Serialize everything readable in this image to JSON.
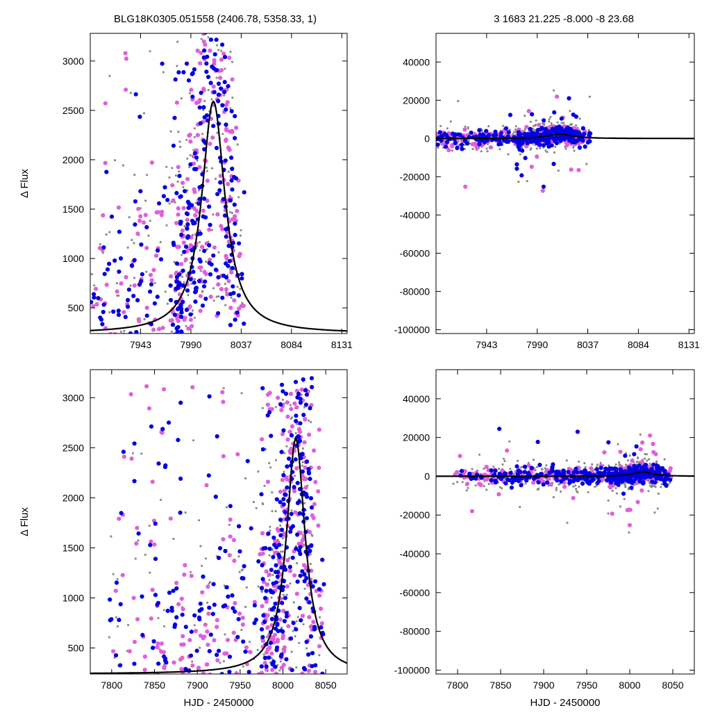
{
  "header": {
    "title_left": "BLG18K0305.051558 (2406.78, 5358.33,    1)",
    "title_right": "3   1683   21.225   -8.000   -8   23.68"
  },
  "colors": {
    "series_a": "#0000e0",
    "series_b": "#e060d8",
    "series_c": "#8a8a8a",
    "model": "#000000"
  },
  "chart_data": [
    {
      "type": "scatter",
      "panel": "top-left",
      "xlabel": "",
      "ylabel": "Δ Flux",
      "xlim": [
        7896,
        8136
      ],
      "ylim": [
        240,
        3280
      ],
      "xticks": [
        7943,
        7990,
        8037,
        8084,
        8131
      ],
      "yticks": [
        500,
        1000,
        1500,
        2000,
        2500,
        3000
      ],
      "grid": false,
      "model_peak": {
        "x": 8011,
        "y": 2590
      }
    },
    {
      "type": "scatter",
      "panel": "top-right",
      "xlabel": "",
      "ylabel": "",
      "xlim": [
        7896,
        8136
      ],
      "ylim": [
        -102000,
        55000
      ],
      "xticks": [
        7943,
        7990,
        8037,
        8084,
        8131
      ],
      "yticks": [
        40000,
        20000,
        0,
        -20000,
        -40000,
        -60000,
        -80000,
        -100000
      ],
      "grid": false,
      "model_peak": {
        "x": 8011,
        "y": 2590
      }
    },
    {
      "type": "scatter",
      "panel": "bottom-left",
      "xlabel": "HJD - 2450000",
      "ylabel": "Δ Flux",
      "xlim": [
        7775,
        8075
      ],
      "ylim": [
        240,
        3280
      ],
      "xticks": [
        7800,
        7850,
        7900,
        7950,
        8000,
        8050
      ],
      "yticks": [
        500,
        1000,
        1500,
        2000,
        2500,
        3000
      ],
      "grid": false,
      "model_peak": {
        "x": 8015,
        "y": 2590
      }
    },
    {
      "type": "scatter",
      "panel": "bottom-right",
      "xlabel": "HJD - 2450000",
      "ylabel": "",
      "xlim": [
        7775,
        8075
      ],
      "ylim": [
        -102000,
        55000
      ],
      "xticks": [
        7800,
        7850,
        7900,
        7950,
        8000,
        8050
      ],
      "yticks": [
        40000,
        20000,
        0,
        -20000,
        -40000,
        -60000,
        -80000,
        -100000
      ],
      "grid": false,
      "model_peak": {
        "x": 8015,
        "y": 2590
      }
    }
  ]
}
